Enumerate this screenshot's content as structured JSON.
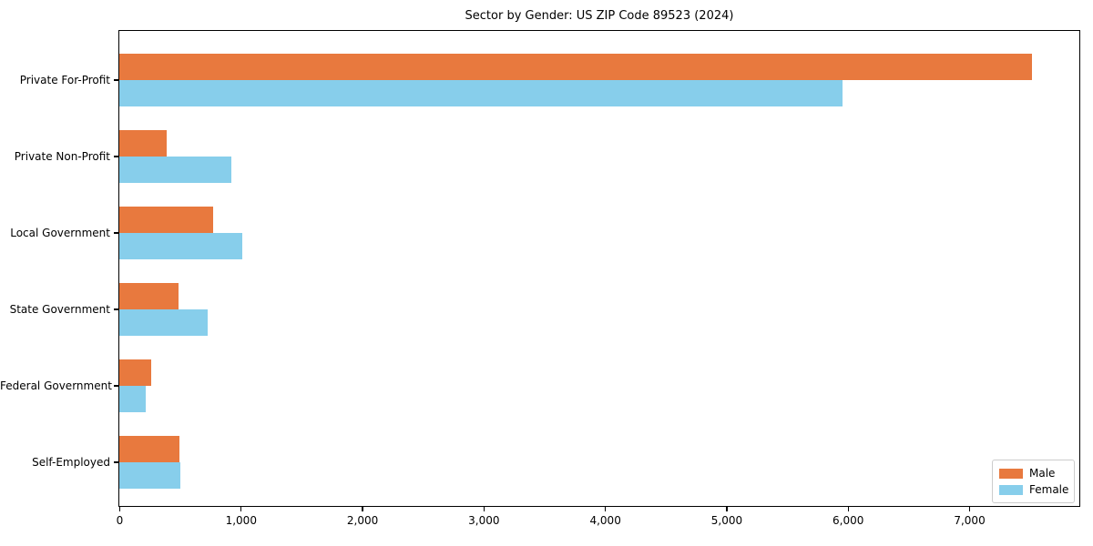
{
  "figure": {
    "background": "#ffffff",
    "axes_edge_color": "#000000"
  },
  "chart_data": {
    "type": "bar",
    "orientation": "horizontal",
    "title": "Sector by Gender: US ZIP Code 89523 (2024)",
    "categories": [
      "Private For-Profit",
      "Private Non-Profit",
      "Local Government",
      "State Government",
      "Federal Government",
      "Self-Employed"
    ],
    "series": [
      {
        "name": "Male",
        "color": "#e8793e",
        "values": [
          7520,
          390,
          775,
          490,
          260,
          495
        ]
      },
      {
        "name": "Female",
        "color": "#87ceeb",
        "values": [
          5960,
          920,
          1010,
          725,
          220,
          500
        ]
      }
    ],
    "xlabel": "",
    "ylabel": "",
    "xlim": [
      0,
      7900
    ],
    "x_tick_values": [
      0,
      1000,
      2000,
      3000,
      4000,
      5000,
      6000,
      7000
    ],
    "x_tick_labels": [
      "0",
      "1,000",
      "2,000",
      "3,000",
      "4,000",
      "5,000",
      "6,000",
      "7,000"
    ],
    "grid": false,
    "legend": {
      "position": "lower right",
      "entries": [
        "Male",
        "Female"
      ]
    }
  }
}
